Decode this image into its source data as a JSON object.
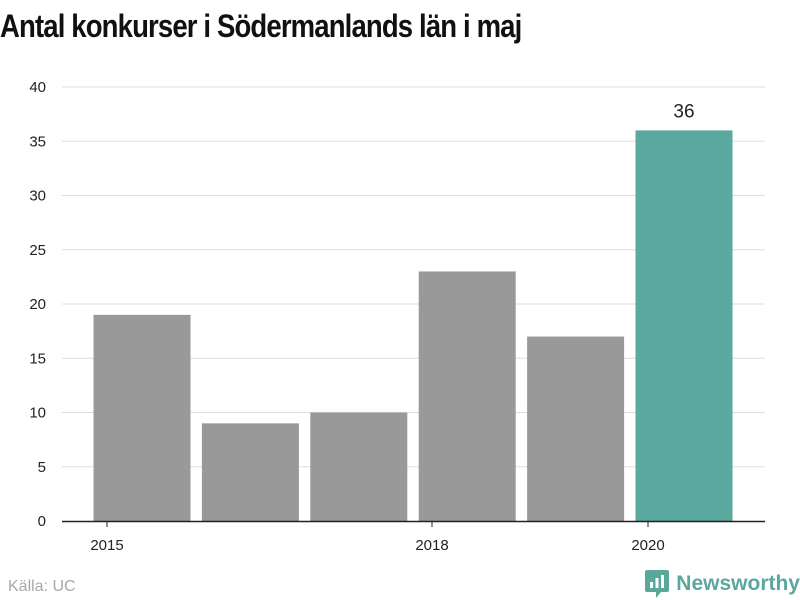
{
  "chart_data": {
    "type": "bar",
    "title": "Antal konkurser i Södermanlands län i maj",
    "xlabel": "",
    "ylabel": "",
    "categories": [
      "2015",
      "2016",
      "2017",
      "2018",
      "2019",
      "2020"
    ],
    "values": [
      19,
      9,
      10,
      23,
      17,
      36
    ],
    "highlight_index": 5,
    "highlight_label": "36",
    "x_tick_labels": [
      "2015",
      "2018",
      "2020"
    ],
    "y_ticks": [
      0,
      5,
      10,
      15,
      20,
      25,
      30,
      35,
      40
    ],
    "ylim": [
      0,
      40
    ],
    "grid": true,
    "colors": {
      "bar": "#999999",
      "highlight": "#5ba89e",
      "grid": "#dddddd",
      "axis": "#222222"
    }
  },
  "footer": {
    "source": "Källa: UC",
    "brand": "Newsworthy"
  },
  "icons": {
    "brand_logo": "newsworthy-logo-icon"
  }
}
